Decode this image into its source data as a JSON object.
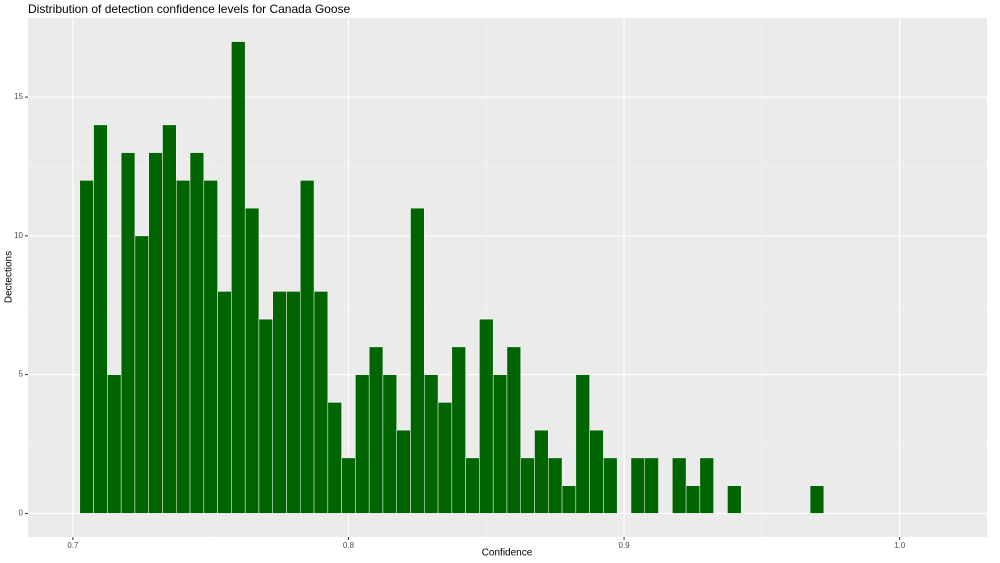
{
  "chart_data": {
    "type": "histogram",
    "title": "Distribution of detection confidence levels for Canada Goose",
    "x_label": "Confidence",
    "y_label": "Dectections",
    "bins": [
      0.7025,
      0.7075,
      0.7125,
      0.7175,
      0.7225,
      0.7275,
      0.7325,
      0.7375,
      0.7425,
      0.7475,
      0.7525,
      0.7575,
      0.7625,
      0.7675,
      0.7725,
      0.7775,
      0.7825,
      0.7875,
      0.7925,
      0.7975,
      0.8025,
      0.8075,
      0.8125,
      0.8175,
      0.8225,
      0.8275,
      0.8325,
      0.8375,
      0.8425,
      0.8475,
      0.8525,
      0.8575,
      0.8625,
      0.8675,
      0.8725,
      0.8775,
      0.8825,
      0.8875,
      0.8925,
      0.8975,
      0.9025,
      0.9075,
      0.9125,
      0.9175,
      0.9225,
      0.9275,
      0.9325,
      0.9375,
      0.9425,
      0.9475,
      0.9525,
      0.9575,
      0.9625,
      0.9675,
      0.9725
    ],
    "values": [
      12,
      14,
      5,
      13,
      10,
      13,
      14,
      12,
      13,
      12,
      8,
      17,
      11,
      7,
      8,
      8,
      12,
      8,
      4,
      2,
      5,
      6,
      5,
      3,
      11,
      5,
      4,
      6,
      2,
      7,
      5,
      6,
      2,
      3,
      2,
      1,
      5,
      3,
      2,
      0,
      2,
      2,
      0,
      2,
      1,
      2,
      0,
      1,
      0,
      0,
      0,
      0,
      0,
      1
    ],
    "color": "#006400",
    "xlim": [
      0.6837,
      1.0317
    ],
    "xticks": [
      0.7,
      0.8,
      0.9,
      {
        "value": 1,
        "label": "1.0"
      }
    ],
    "ylim": [
      -0.85,
      17.85
    ],
    "yticks": [
      0,
      5,
      10,
      15
    ],
    "grid": true
  }
}
